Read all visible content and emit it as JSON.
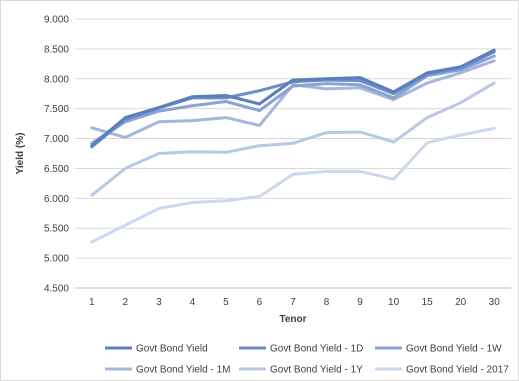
{
  "chart_data": {
    "type": "line",
    "title": "",
    "xlabel": "Tenor",
    "ylabel": "Yield (%)",
    "categories": [
      "1",
      "2",
      "3",
      "4",
      "5",
      "6",
      "7",
      "8",
      "9",
      "10",
      "15",
      "20",
      "30"
    ],
    "ylim": [
      4.5,
      9.0
    ],
    "yticks": [
      "4.500",
      "5.000",
      "5.500",
      "6.000",
      "6.500",
      "7.000",
      "7.500",
      "8.000",
      "8.500",
      "9.000"
    ],
    "grid": true,
    "legend_position": "bottom",
    "series": [
      {
        "name": "Govt Bond Yield",
        "color": "#5b7fbd",
        "values": [
          6.88,
          7.35,
          7.52,
          7.7,
          7.72,
          7.58,
          7.98,
          8.0,
          8.02,
          7.78,
          8.1,
          8.2,
          8.48
        ]
      },
      {
        "name": "Govt Bond Yield - 1D",
        "color": "#6c8dc6",
        "values": [
          6.86,
          7.32,
          7.51,
          7.68,
          7.68,
          7.8,
          7.95,
          7.98,
          7.97,
          7.75,
          8.08,
          8.18,
          8.45
        ]
      },
      {
        "name": "Govt Bond Yield - 1W",
        "color": "#8aa3d3",
        "values": [
          6.92,
          7.28,
          7.46,
          7.55,
          7.62,
          7.47,
          7.88,
          7.92,
          7.9,
          7.68,
          8.05,
          8.15,
          8.38
        ]
      },
      {
        "name": "Govt Bond Yield - 1M",
        "color": "#a3b6dc",
        "values": [
          7.18,
          7.02,
          7.28,
          7.3,
          7.35,
          7.22,
          7.9,
          7.83,
          7.85,
          7.65,
          7.93,
          8.1,
          8.3
        ]
      },
      {
        "name": "Govt Bond Yield - 1Y",
        "color": "#b9c8e5",
        "values": [
          6.05,
          6.5,
          6.75,
          6.78,
          6.77,
          6.88,
          6.92,
          7.1,
          7.11,
          6.94,
          7.35,
          7.6,
          7.93
        ]
      },
      {
        "name": "Govt Bond Yield - 2017",
        "color": "#cdd8ee",
        "values": [
          5.27,
          5.55,
          5.83,
          5.93,
          5.96,
          6.03,
          6.4,
          6.45,
          6.45,
          6.32,
          6.93,
          7.06,
          7.17
        ]
      }
    ]
  }
}
